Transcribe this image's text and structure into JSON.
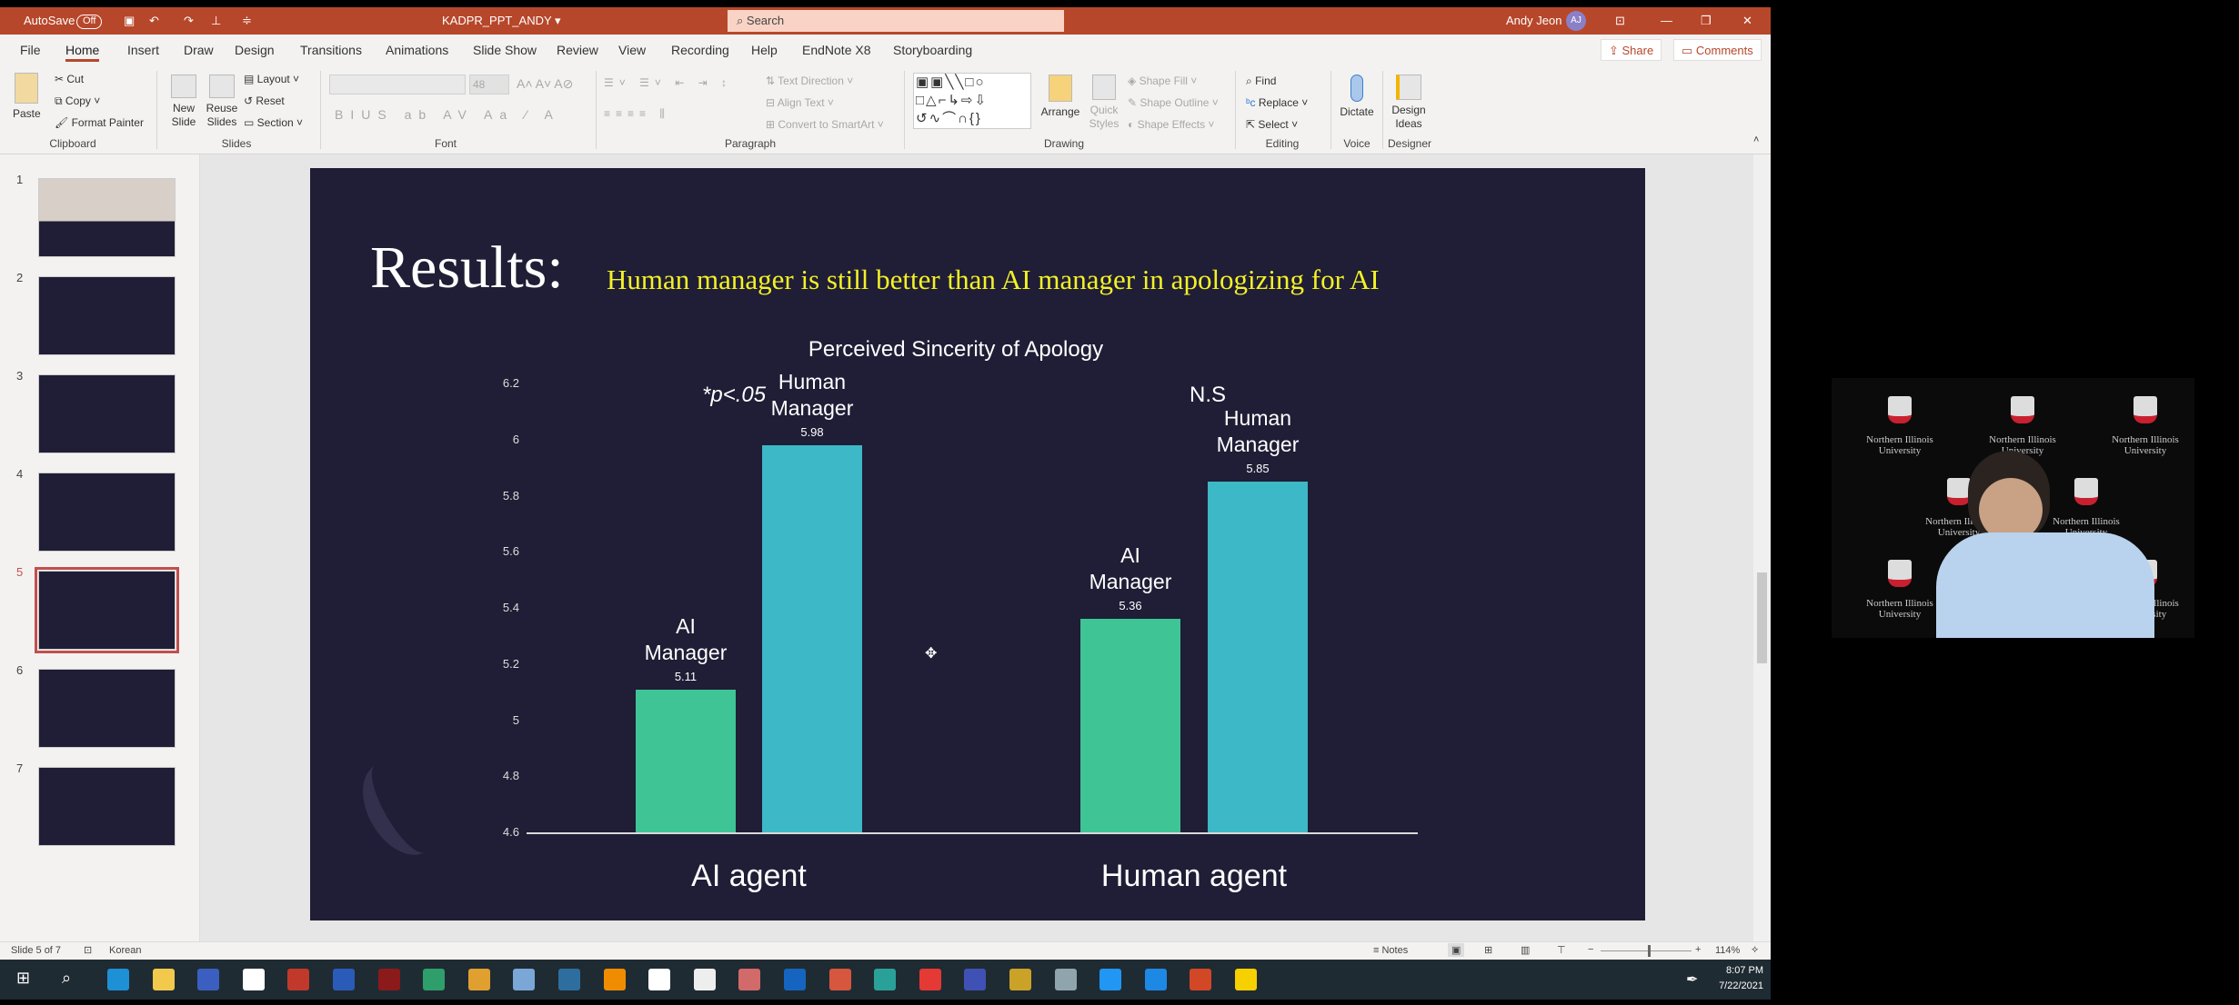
{
  "titlebar": {
    "autosave": "AutoSave",
    "autosave_state": "Off",
    "doc_title": "KADPR_PPT_ANDY ▾",
    "search_placeholder": "Search",
    "user": "Andy Jeon",
    "initials": "AJ"
  },
  "tabs": [
    "File",
    "Home",
    "Insert",
    "Draw",
    "Design",
    "Transitions",
    "Animations",
    "Slide Show",
    "Review",
    "View",
    "Recording",
    "Help",
    "EndNote X8",
    "Storyboarding"
  ],
  "active_tab": "Home",
  "header_buttons": {
    "share": "Share",
    "comments": "Comments"
  },
  "ribbon": {
    "clipboard": {
      "paste": "Paste",
      "cut": "Cut",
      "copy": "Copy",
      "format_painter": "Format Painter",
      "group": "Clipboard"
    },
    "slides": {
      "new_slide": "New Slide",
      "reuse_slides": "Reuse Slides",
      "layout": "Layout",
      "reset": "Reset",
      "section": "Section",
      "group": "Slides"
    },
    "font": {
      "size": "48",
      "group": "Font"
    },
    "paragraph": {
      "text_direction": "Text Direction",
      "align_text": "Align Text",
      "convert_smartart": "Convert to SmartArt",
      "group": "Paragraph"
    },
    "drawing": {
      "arrange": "Arrange",
      "quick_styles": "Quick Styles",
      "shape_fill": "Shape Fill",
      "shape_outline": "Shape Outline",
      "shape_effects": "Shape Effects",
      "group": "Drawing"
    },
    "editing": {
      "find": "Find",
      "replace": "Replace",
      "select": "Select",
      "group": "Editing"
    },
    "voice": {
      "dictate": "Dictate",
      "group": "Voice"
    },
    "designer": {
      "design_ideas": "Design Ideas",
      "group": "Designer"
    }
  },
  "thumbnails": [
    {
      "num": "1"
    },
    {
      "num": "2"
    },
    {
      "num": "3"
    },
    {
      "num": "4"
    },
    {
      "num": "5"
    },
    {
      "num": "6"
    },
    {
      "num": "7"
    }
  ],
  "selected_slide": 5,
  "slide": {
    "title": "Results:",
    "subtitle": "Human manager is still better than AI manager in apologizing for AI",
    "annotations": {
      "sig": "*p<.05",
      "ns": "N.S"
    }
  },
  "chart_data": {
    "type": "bar",
    "title": "Perceived Sincerity of Apology",
    "categories": [
      "AI agent",
      "Human agent"
    ],
    "series": [
      {
        "name": "AI Manager",
        "values": [
          5.11,
          5.36
        ],
        "color": "#3fc495"
      },
      {
        "name": "Human Manager",
        "values": [
          5.98,
          5.85
        ],
        "color": "#3db8c6"
      }
    ],
    "ylim": [
      4.6,
      6.2
    ],
    "yticks": [
      "6.2",
      "6",
      "5.8",
      "5.6",
      "5.4",
      "5.2",
      "5",
      "4.8",
      "4.6"
    ],
    "grid": false
  },
  "status": {
    "slide_info": "Slide 5 of 7",
    "language": "Korean",
    "notes": "Notes",
    "zoom": "114%"
  },
  "taskbar": {
    "time": "8:07 PM",
    "date": "7/22/2021"
  },
  "webcam": {
    "backdrop_text": "Northern Illinois University"
  }
}
